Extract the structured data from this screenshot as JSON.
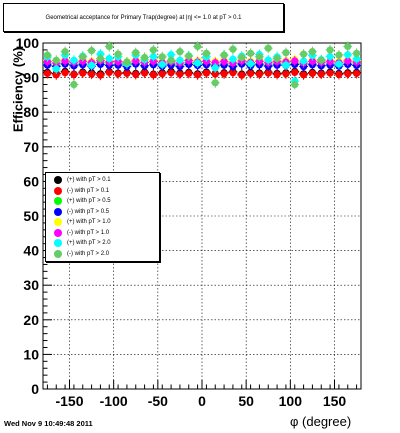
{
  "title": "Geometrical acceptance for Primary Trap(degree) at |η| <= 1.0 at pT > 0.1",
  "footer": "Wed Nov  9 10:49:48 2011",
  "legend": [
    {
      "label": "(+) with pT > 0.1",
      "color": "#000000"
    },
    {
      "label": "(-) with pT > 0.1",
      "color": "#ff0000"
    },
    {
      "label": "(+) with pT > 0.5",
      "color": "#00ff00"
    },
    {
      "label": "(-) with pT > 0.5",
      "color": "#0000ff"
    },
    {
      "label": "(+) with pT > 1.0",
      "color": "#ffff00"
    },
    {
      "label": "(-) with pT > 1.0",
      "color": "#ff00ff"
    },
    {
      "label": "(+) with pT > 2.0",
      "color": "#00ffff"
    },
    {
      "label": "(-) with pT > 2.0",
      "color": "#66cc66"
    }
  ],
  "chart_data": {
    "type": "scatter",
    "title": "Geometrical acceptance for Primary Trap(degree) at |η| <= 1.0 at pT > 0.1",
    "xlabel": "φ (degree)",
    "ylabel": "Efficiency (%)",
    "xlim": [
      -180,
      180
    ],
    "ylim": [
      0,
      100
    ],
    "xticks": [
      -150,
      -100,
      -50,
      0,
      50,
      100,
      150
    ],
    "yticks": [
      0,
      10,
      20,
      30,
      40,
      50,
      60,
      70,
      80,
      90,
      100
    ],
    "grid": true,
    "legend_position": "left-middle",
    "x": [
      -175,
      -165,
      -155,
      -145,
      -135,
      -125,
      -115,
      -105,
      -95,
      -85,
      -75,
      -65,
      -55,
      -45,
      -35,
      -25,
      -15,
      -5,
      5,
      15,
      25,
      35,
      45,
      55,
      65,
      75,
      85,
      95,
      105,
      115,
      125,
      135,
      145,
      155,
      165,
      175
    ],
    "series": [
      {
        "name": "(+) with pT > 0.1",
        "color": "#000000",
        "values": [
          91.5,
          91.2,
          91.8,
          91.0,
          91.6,
          91.4,
          91.1,
          91.7,
          91.3,
          91.5,
          91.2,
          91.6,
          91.0,
          91.4,
          91.8,
          91.3,
          91.5,
          91.1,
          91.6,
          91.2,
          91.4,
          91.7,
          91.0,
          91.5,
          91.3,
          91.6,
          91.2,
          91.4,
          91.8,
          91.1,
          91.5,
          91.3,
          91.6,
          91.2,
          91.4,
          91.5
        ]
      },
      {
        "name": "(-) with pT > 0.1",
        "color": "#ff0000",
        "values": [
          91.2,
          90.8,
          91.4,
          90.9,
          91.3,
          91.0,
          90.7,
          91.5,
          91.1,
          91.2,
          90.9,
          91.3,
          90.8,
          91.1,
          91.4,
          91.0,
          91.2,
          90.8,
          91.3,
          91.0,
          91.1,
          91.4,
          90.7,
          91.2,
          91.0,
          91.3,
          90.9,
          91.1,
          91.5,
          90.8,
          91.2,
          91.0,
          91.3,
          90.9,
          91.1,
          91.2
        ]
      },
      {
        "name": "(+) with pT > 0.5",
        "color": "#00ff00",
        "values": [
          94.0,
          93.5,
          94.2,
          93.8,
          94.1,
          93.6,
          94.3,
          93.9,
          94.0,
          93.7,
          94.2,
          93.5,
          94.1,
          93.8,
          94.0,
          93.6,
          94.3,
          93.9,
          94.1,
          93.7,
          94.0,
          93.5,
          94.2,
          93.8,
          94.1,
          93.6,
          94.0,
          93.9,
          94.2,
          93.7,
          94.1,
          93.5,
          94.0,
          93.8,
          94.2,
          93.9
        ]
      },
      {
        "name": "(-) with pT > 0.5",
        "color": "#0000ff",
        "values": [
          93.6,
          93.2,
          93.9,
          93.4,
          93.7,
          93.3,
          93.8,
          93.5,
          93.6,
          93.2,
          93.9,
          93.4,
          93.7,
          93.3,
          93.6,
          93.2,
          93.8,
          93.5,
          93.7,
          93.3,
          93.6,
          93.2,
          93.9,
          93.4,
          93.7,
          93.3,
          93.6,
          93.5,
          93.8,
          93.2,
          93.7,
          93.4,
          93.6,
          93.3,
          93.8,
          93.5
        ]
      },
      {
        "name": "(+) with pT > 1.0",
        "color": "#ffff00",
        "values": [
          95.0,
          94.6,
          95.2,
          94.8,
          95.1,
          94.7,
          95.3,
          94.9,
          95.0,
          94.6,
          95.2,
          94.8,
          95.1,
          94.7,
          95.0,
          94.6,
          95.3,
          94.9,
          95.1,
          94.7,
          95.0,
          94.6,
          95.2,
          94.8,
          95.1,
          94.7,
          95.0,
          94.9,
          95.2,
          94.6,
          95.1,
          94.8,
          95.0,
          94.7,
          95.2,
          94.9
        ]
      },
      {
        "name": "(-) with pT > 1.0",
        "color": "#ff00ff",
        "values": [
          94.6,
          94.2,
          94.8,
          94.4,
          94.7,
          94.3,
          94.9,
          94.5,
          94.6,
          94.2,
          94.8,
          94.4,
          94.7,
          94.3,
          94.6,
          94.2,
          94.9,
          94.5,
          94.7,
          94.3,
          94.6,
          94.2,
          94.8,
          94.4,
          94.7,
          94.3,
          94.6,
          94.5,
          94.8,
          94.2,
          94.7,
          94.4,
          94.6,
          94.3,
          94.8,
          94.5
        ]
      },
      {
        "name": "(+) with pT > 2.0",
        "color": "#00ffff",
        "values": [
          96.0,
          92.5,
          96.5,
          95.0,
          96.2,
          93.5,
          96.8,
          95.5,
          96.0,
          94.0,
          96.5,
          95.2,
          96.1,
          93.8,
          96.6,
          95.0,
          96.3,
          94.2,
          96.0,
          92.8,
          96.5,
          95.3,
          96.2,
          94.0,
          96.7,
          95.1,
          96.0,
          93.6,
          89.0,
          94.8,
          96.4,
          95.2,
          96.1,
          93.9,
          96.6,
          95.4
        ]
      },
      {
        "name": "(-) with pT > 2.0",
        "color": "#66cc66",
        "values": [
          96.5,
          95.0,
          97.5,
          88.0,
          96.0,
          97.8,
          95.5,
          99.0,
          96.8,
          94.5,
          97.2,
          95.8,
          98.0,
          96.0,
          95.0,
          97.5,
          96.2,
          99.0,
          97.0,
          88.5,
          96.5,
          98.2,
          95.8,
          97.0,
          96.0,
          98.5,
          95.5,
          97.2,
          88.0,
          96.8,
          97.5,
          95.0,
          98.0,
          96.5,
          99.0,
          97.0
        ]
      }
    ]
  }
}
